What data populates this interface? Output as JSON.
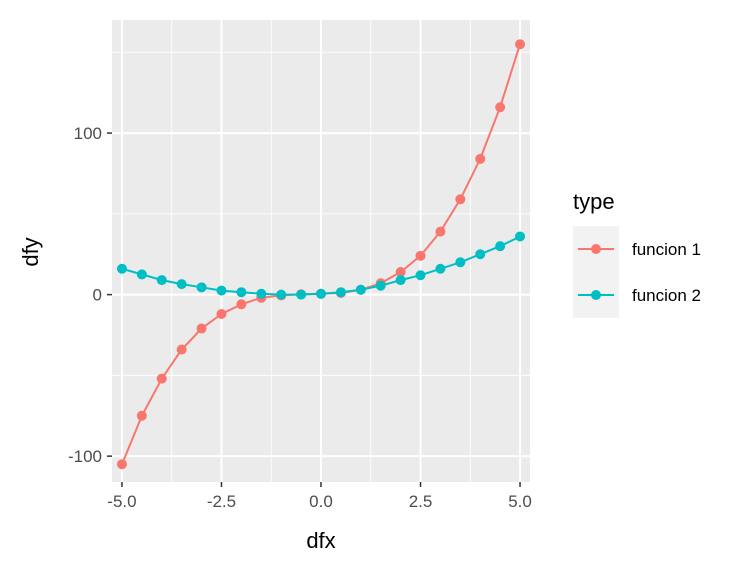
{
  "chart_data": {
    "type": "line",
    "xlabel": "dfx",
    "ylabel": "dfy",
    "xlim": [
      -5.25,
      5.25
    ],
    "ylim": [
      -116,
      170
    ],
    "x_ticks": [
      -5.0,
      -2.5,
      0.0,
      2.5,
      5.0
    ],
    "x_tick_labels": [
      "-5.0",
      "-2.5",
      "0.0",
      "2.5",
      "5.0"
    ],
    "y_ticks": [
      -100,
      0,
      100
    ],
    "y_tick_labels": [
      "-100",
      "0",
      "100"
    ],
    "x_minor_ticks": [
      -3.75,
      -1.25,
      1.25,
      3.75
    ],
    "y_minor_ticks": [
      -50,
      50,
      150
    ],
    "grid": true,
    "background": "#ebebeb",
    "legend": {
      "title": "type",
      "position": "right"
    },
    "x": [
      -5.0,
      -4.5,
      -4.0,
      -3.5,
      -3.0,
      -2.5,
      -2.0,
      -1.5,
      -1.0,
      -0.5,
      0.0,
      0.5,
      1.0,
      1.5,
      2.0,
      2.5,
      3.0,
      3.5,
      4.0,
      4.5,
      5.0
    ],
    "series": [
      {
        "name": "funcion 1",
        "color": "#f8766d",
        "values": [
          -105,
          -75,
          -52,
          -34,
          -21,
          -12,
          -6,
          -2,
          -0.5,
          0.2,
          0.5,
          1,
          3,
          7,
          14,
          24,
          39,
          59,
          84,
          116,
          155
        ]
      },
      {
        "name": "funcion 2",
        "color": "#00bfc4",
        "values": [
          16,
          12.5,
          9,
          6.5,
          4.5,
          2.5,
          1.5,
          0.5,
          0,
          0,
          0.5,
          1.5,
          3,
          5.5,
          9,
          12,
          16,
          20,
          25,
          30,
          36
        ]
      }
    ]
  }
}
